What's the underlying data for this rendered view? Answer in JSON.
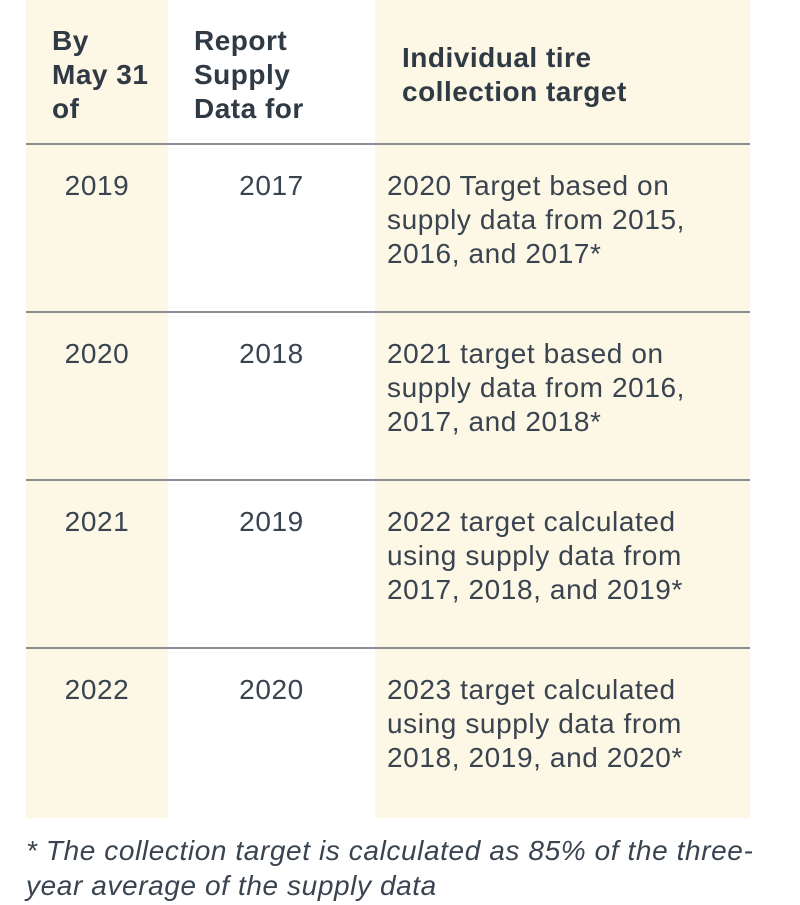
{
  "table": {
    "headers": {
      "col1": "By\nMay 31\nof",
      "col2": "Report\nSupply\nData for",
      "col3": "Individual tire\ncollection target"
    },
    "rows": [
      {
        "year": "2019",
        "supply": "2017",
        "target": "2020 Target based on supply data from 2015, 2016, and 2017*"
      },
      {
        "year": "2020",
        "supply": "2018",
        "target": "2021 target based on supply data from 2016, 2017, and 2018*"
      },
      {
        "year": "2021",
        "supply": "2019",
        "target": "2022 target calculated using supply data from 2017, 2018, and 2019*"
      },
      {
        "year": "2022",
        "supply": "2020",
        "target": "2023 target calculated using supply data from 2018, 2019, and 2020*"
      }
    ]
  },
  "footnote": "* The collection target is calculated as 85% of the three-year average of the supply data",
  "colors": {
    "band": "#fdf7e6",
    "rule": "#8a8f94",
    "text": "#3a4450"
  }
}
